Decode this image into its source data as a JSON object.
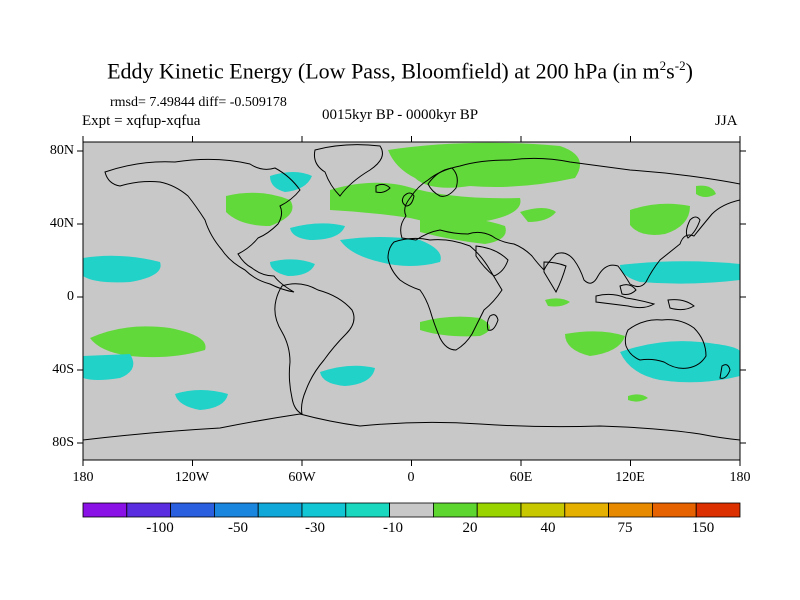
{
  "title": {
    "text": "Eddy Kinetic Energy (Low Pass, Bloomfield) at 200 hPa (in m",
    "sup1": "2",
    "mid": "s",
    "sup2": "-2",
    "end": ")"
  },
  "stats": "rmsd= 7.49844 diff= -0.509178",
  "experiment": "Expt = xqfup-xqfua",
  "period": "0015kyr BP - 0000kyr BP",
  "season": "JJA",
  "axes": {
    "lat_labels": [
      "80N",
      "40N",
      "0",
      "40S",
      "80S"
    ],
    "lon_labels": [
      "180",
      "120W",
      "60W",
      "0",
      "60E",
      "120E",
      "180"
    ]
  },
  "colorbar": {
    "labels": [
      "-100",
      "-50",
      "-30",
      "-10",
      "20",
      "40",
      "75",
      "150"
    ],
    "colors": [
      "#8a12e6",
      "#5a2ee0",
      "#2a5fe0",
      "#1a86de",
      "#10a8d8",
      "#12c6d4",
      "#1ad8c0",
      "#c8c8c8",
      "#5ed630",
      "#9ad400",
      "#c8c800",
      "#e6b000",
      "#e88a00",
      "#e66200",
      "#dc3000"
    ]
  },
  "colors": {
    "land_fill": "#c8c8c8",
    "negative": "#20d2c8",
    "positive": "#62d93a",
    "coast": "#000000"
  }
}
